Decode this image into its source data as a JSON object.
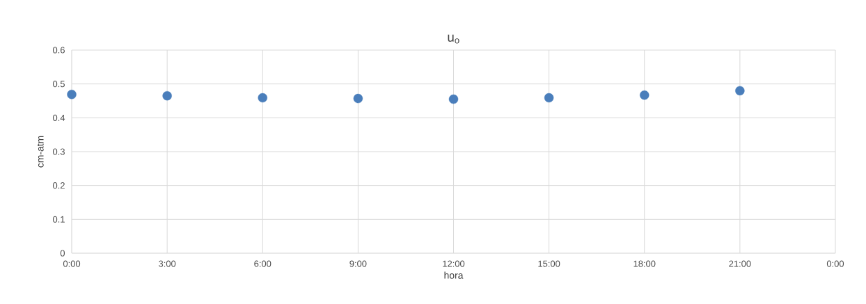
{
  "chart_data": {
    "type": "scatter",
    "title": "u$_{o}$",
    "xlabel": "hora",
    "ylabel": "cm-atm",
    "x": [
      0,
      3,
      6,
      9,
      12,
      15,
      18,
      21
    ],
    "series": [
      {
        "color": "#4a7ebb",
        "values": [
          0.469,
          0.465,
          0.459,
          0.457,
          0.455,
          0.459,
          0.467,
          0.48
        ]
      }
    ],
    "xlim": [
      0,
      24
    ],
    "xticks": [
      {
        "value": 0,
        "label": "0:00"
      },
      {
        "value": 3,
        "label": "3:00"
      },
      {
        "value": 6,
        "label": "6:00"
      },
      {
        "value": 9,
        "label": "9:00"
      },
      {
        "value": 12,
        "label": "12:00"
      },
      {
        "value": 15,
        "label": "15:00"
      },
      {
        "value": 18,
        "label": "18:00"
      },
      {
        "value": 21,
        "label": "21:00"
      },
      {
        "value": 24,
        "label": "0:00"
      }
    ],
    "ylim": [
      0,
      0.6
    ],
    "yticks": [
      0,
      0.1,
      0.2,
      0.3,
      0.4,
      0.5,
      0.6
    ],
    "grid": true
  }
}
